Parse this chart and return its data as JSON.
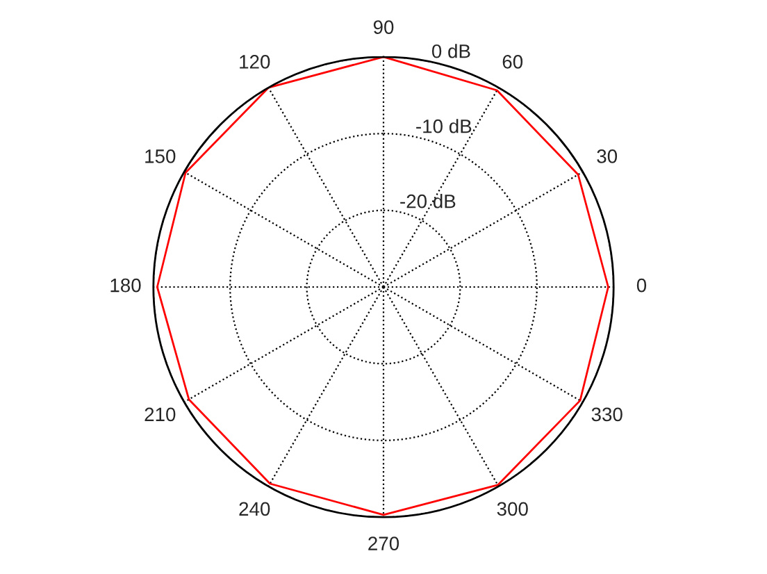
{
  "chart_data": {
    "type": "radar",
    "categories": [
      "90",
      "60",
      "30",
      "0",
      "330",
      "300",
      "270",
      "240",
      "210",
      "180",
      "150",
      "120"
    ],
    "series": [
      {
        "color": "#ff0000",
        "values": [
          0,
          -0.4,
          -0.7,
          -0.7,
          -0.4,
          -0.2,
          -0.3,
          -0.4,
          -0.7,
          -0.5,
          -0.2,
          0
        ]
      }
    ],
    "ylim": [
      -30,
      0
    ],
    "yticks": [
      {
        "value": -20,
        "label": "-20 dB"
      },
      {
        "value": -10,
        "label": "-10 dB"
      },
      {
        "value": 0,
        "label": "0 dB"
      }
    ],
    "grid": true,
    "line_style": "solid"
  }
}
